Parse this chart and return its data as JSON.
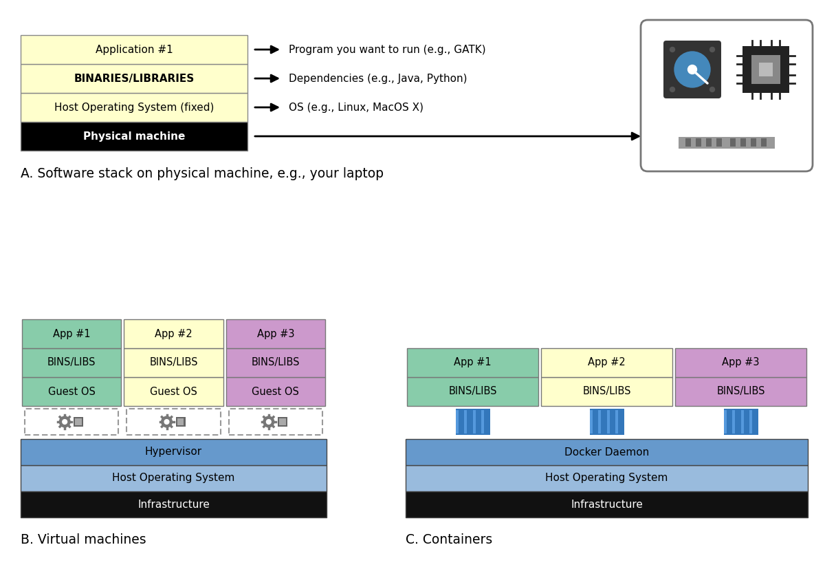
{
  "bg_color": "#ffffff",
  "section_a": {
    "layers": [
      {
        "label": "Physical machine",
        "color": "#000000",
        "text_color": "#ffffff",
        "bold": true
      },
      {
        "label": "Host Operating System (fixed)",
        "color": "#ffffcc",
        "text_color": "#000000",
        "bold": false
      },
      {
        "label": "BINARIES/LIBRARIES",
        "color": "#ffffcc",
        "text_color": "#000000",
        "bold": true
      },
      {
        "label": "Application #1",
        "color": "#ffffcc",
        "text_color": "#000000",
        "bold": false
      }
    ],
    "annotations": [
      {
        "text": "Program you want to run (e.g., GATK)",
        "row": 3
      },
      {
        "text": "Dependencies (e.g., Java, Python)",
        "row": 2
      },
      {
        "text": "OS (e.g., Linux, MacOS X)",
        "row": 1
      }
    ],
    "title": "A. Software stack on physical machine, e.g., your laptop"
  },
  "section_b": {
    "title": "B. Virtual machines",
    "cols": [
      {
        "app": "App #1",
        "app_color": "#88ccaa",
        "bins": "BINS/LIBS",
        "bins_color": "#88ccaa",
        "os": "Guest OS",
        "os_color": "#88ccaa"
      },
      {
        "app": "App #2",
        "app_color": "#ffffcc",
        "bins": "BINS/LIBS",
        "bins_color": "#ffffcc",
        "os": "Guest OS",
        "os_color": "#ffffcc"
      },
      {
        "app": "App #3",
        "app_color": "#cc99cc",
        "bins": "BINS/LIBS",
        "bins_color": "#cc99cc",
        "os": "Guest OS",
        "os_color": "#cc99cc"
      }
    ],
    "hypervisor_color": "#6699cc",
    "host_os_color": "#99bbdd",
    "infra_color": "#111111"
  },
  "section_c": {
    "title": "C. Containers",
    "cols": [
      {
        "app": "App #1",
        "app_color": "#88ccaa",
        "bins": "BINS/LIBS",
        "bins_color": "#88ccaa"
      },
      {
        "app": "App #2",
        "app_color": "#ffffcc",
        "bins": "BINS/LIBS",
        "bins_color": "#ffffcc"
      },
      {
        "app": "App #3",
        "app_color": "#cc99cc",
        "bins": "BINS/LIBS",
        "bins_color": "#cc99cc"
      }
    ],
    "daemon_color": "#6699cc",
    "host_os_color": "#99bbdd",
    "infra_color": "#111111"
  }
}
